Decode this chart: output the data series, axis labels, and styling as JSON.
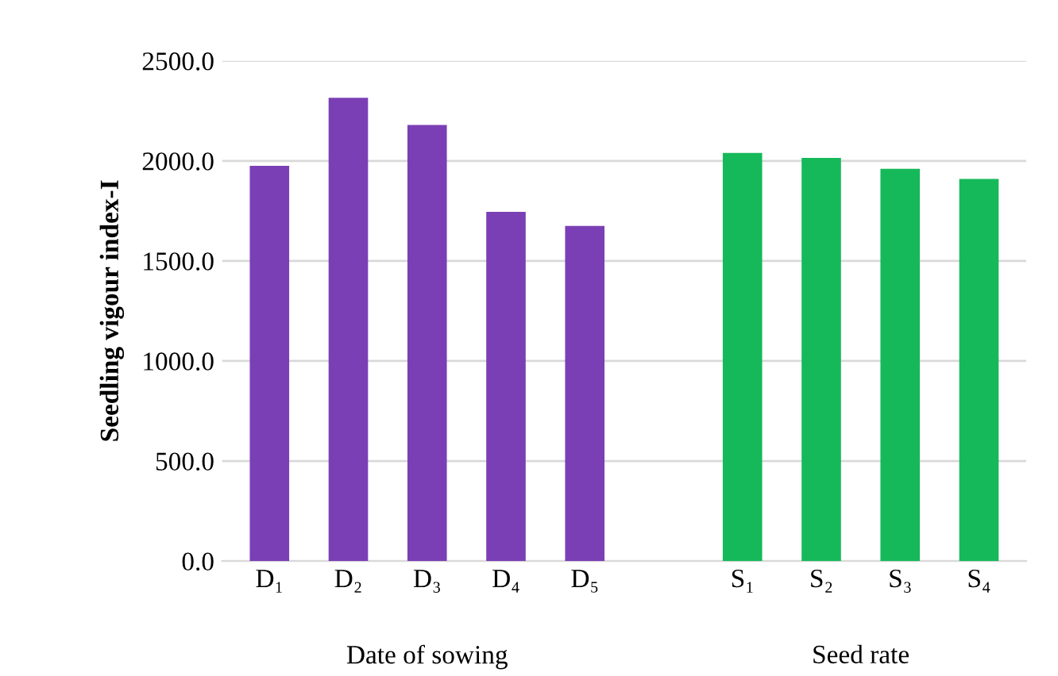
{
  "chart_data": {
    "type": "bar",
    "ylabel": "Seedling vigour index-I",
    "categories": [
      "D₁",
      "D₂",
      "D₃",
      "D₄",
      "D₅",
      null,
      "S₁",
      "S₂",
      "S₃",
      "S₄"
    ],
    "values": [
      1975,
      2315,
      2180,
      1745,
      1675,
      null,
      2040,
      2015,
      1960,
      1910
    ],
    "colors": [
      "#7b3fb5",
      "#7b3fb5",
      "#7b3fb5",
      "#7b3fb5",
      "#7b3fb5",
      null,
      "#16b95a",
      "#16b95a",
      "#16b95a",
      "#16b95a"
    ],
    "ylim": [
      0,
      2500
    ],
    "yticks": [
      {
        "value": 0,
        "label": "0.0"
      },
      {
        "value": 500,
        "label": "500.0"
      },
      {
        "value": 1000,
        "label": "1000.0"
      },
      {
        "value": 1500,
        "label": "1500.0"
      },
      {
        "value": 2000,
        "label": "2000.0"
      },
      {
        "value": 2500,
        "label": "2500.0"
      }
    ],
    "grid": "y",
    "annotations": [
      "Date of sowing",
      "Seed rate"
    ]
  }
}
